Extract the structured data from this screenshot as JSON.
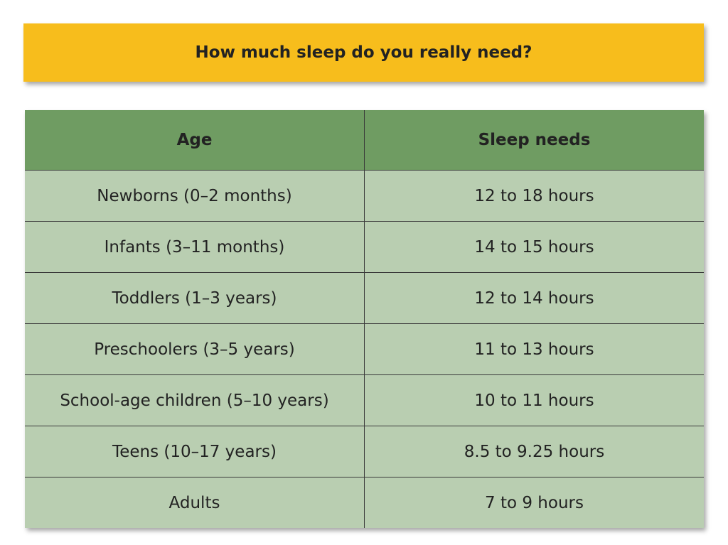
{
  "header": {
    "title": "How much sleep do you really need?"
  },
  "table": {
    "columns": [
      "Age",
      "Sleep needs"
    ],
    "rows": [
      [
        "Newborns (0–2 months)",
        "12 to 18 hours"
      ],
      [
        "Infants (3–11 months)",
        "14 to 15 hours"
      ],
      [
        "Toddlers (1–3 years)",
        "12 to 14 hours"
      ],
      [
        "Preschoolers (3–5 years)",
        "11 to 13 hours"
      ],
      [
        "School-age children (5–10 years)",
        "10 to 11 hours"
      ],
      [
        "Teens (10–17 years)",
        "8.5 to 9.25 hours"
      ],
      [
        "Adults",
        "7 to 9 hours"
      ]
    ]
  }
}
